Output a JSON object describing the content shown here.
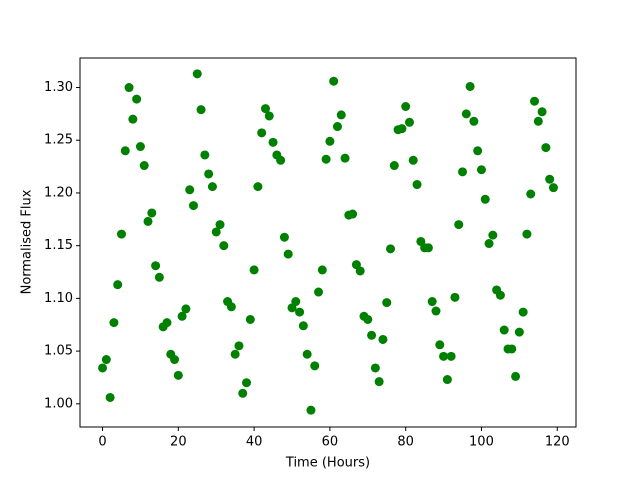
{
  "chart_data": {
    "type": "scatter",
    "x_label": "Time (Hours)",
    "y_label": "Normalised Flux",
    "color": "#008000",
    "x": [
      0,
      1,
      2,
      3,
      4,
      5,
      6,
      7,
      8,
      9,
      10,
      11,
      12,
      13,
      14,
      15,
      16,
      17,
      18,
      19,
      20,
      21,
      22,
      23,
      24,
      25,
      26,
      27,
      28,
      29,
      30,
      31,
      32,
      33,
      34,
      35,
      36,
      37,
      38,
      39,
      40,
      41,
      42,
      43,
      44,
      45,
      46,
      47,
      48,
      49,
      50,
      51,
      52,
      53,
      54,
      55,
      56,
      57,
      58,
      59,
      60,
      61,
      62,
      63,
      64,
      65,
      66,
      67,
      68,
      69,
      70,
      71,
      72,
      73,
      74,
      75,
      76,
      77,
      78,
      79,
      80,
      81,
      82,
      83,
      84,
      85,
      86,
      87,
      88,
      89,
      90,
      91,
      92,
      93,
      94,
      95,
      96,
      97,
      98,
      99,
      100,
      101,
      102,
      103,
      104,
      105,
      106,
      107,
      108,
      109,
      110,
      111,
      112,
      113,
      114,
      115,
      116,
      117,
      118,
      119
    ],
    "values": [
      1.034,
      1.042,
      1.006,
      1.077,
      1.113,
      1.161,
      1.24,
      1.3,
      1.27,
      1.289,
      1.244,
      1.226,
      1.173,
      1.181,
      1.131,
      1.12,
      1.073,
      1.077,
      1.047,
      1.042,
      1.027,
      1.083,
      1.09,
      1.203,
      1.188,
      1.313,
      1.279,
      1.236,
      1.218,
      1.206,
      1.163,
      1.17,
      1.15,
      1.097,
      1.092,
      1.047,
      1.055,
      1.01,
      1.02,
      1.08,
      1.127,
      1.206,
      1.257,
      1.28,
      1.273,
      1.248,
      1.236,
      1.231,
      1.158,
      1.142,
      1.091,
      1.097,
      1.087,
      1.074,
      1.047,
      0.994,
      1.036,
      1.106,
      1.127,
      1.232,
      1.249,
      1.306,
      1.263,
      1.274,
      1.233,
      1.179,
      1.18,
      1.132,
      1.126,
      1.083,
      1.08,
      1.065,
      1.034,
      1.021,
      1.061,
      1.096,
      1.147,
      1.226,
      1.26,
      1.261,
      1.282,
      1.267,
      1.231,
      1.208,
      1.154,
      1.148,
      1.148,
      1.097,
      1.088,
      1.056,
      1.045,
      1.023,
      1.045,
      1.101,
      1.17,
      1.22,
      1.275,
      1.301,
      1.268,
      1.24,
      1.222,
      1.194,
      1.152,
      1.16,
      1.108,
      1.103,
      1.07,
      1.052,
      1.052,
      1.026,
      1.068,
      1.087,
      1.161,
      1.199,
      1.287,
      1.268,
      1.277,
      1.243,
      1.213,
      1.205
    ],
    "xlim": [
      -5.95,
      124.95
    ],
    "xticks": [
      0,
      20,
      40,
      60,
      80,
      100,
      120
    ],
    "ylim": [
      0.978,
      1.328
    ],
    "yticks": [
      {
        "value": 1.0,
        "label": "1.00"
      },
      {
        "value": 1.05,
        "label": "1.05"
      },
      {
        "value": 1.1,
        "label": "1.10"
      },
      {
        "value": 1.15,
        "label": "1.15"
      },
      {
        "value": 1.2,
        "label": "1.20"
      },
      {
        "value": 1.25,
        "label": "1.25"
      },
      {
        "value": 1.3,
        "label": "1.30"
      }
    ]
  }
}
